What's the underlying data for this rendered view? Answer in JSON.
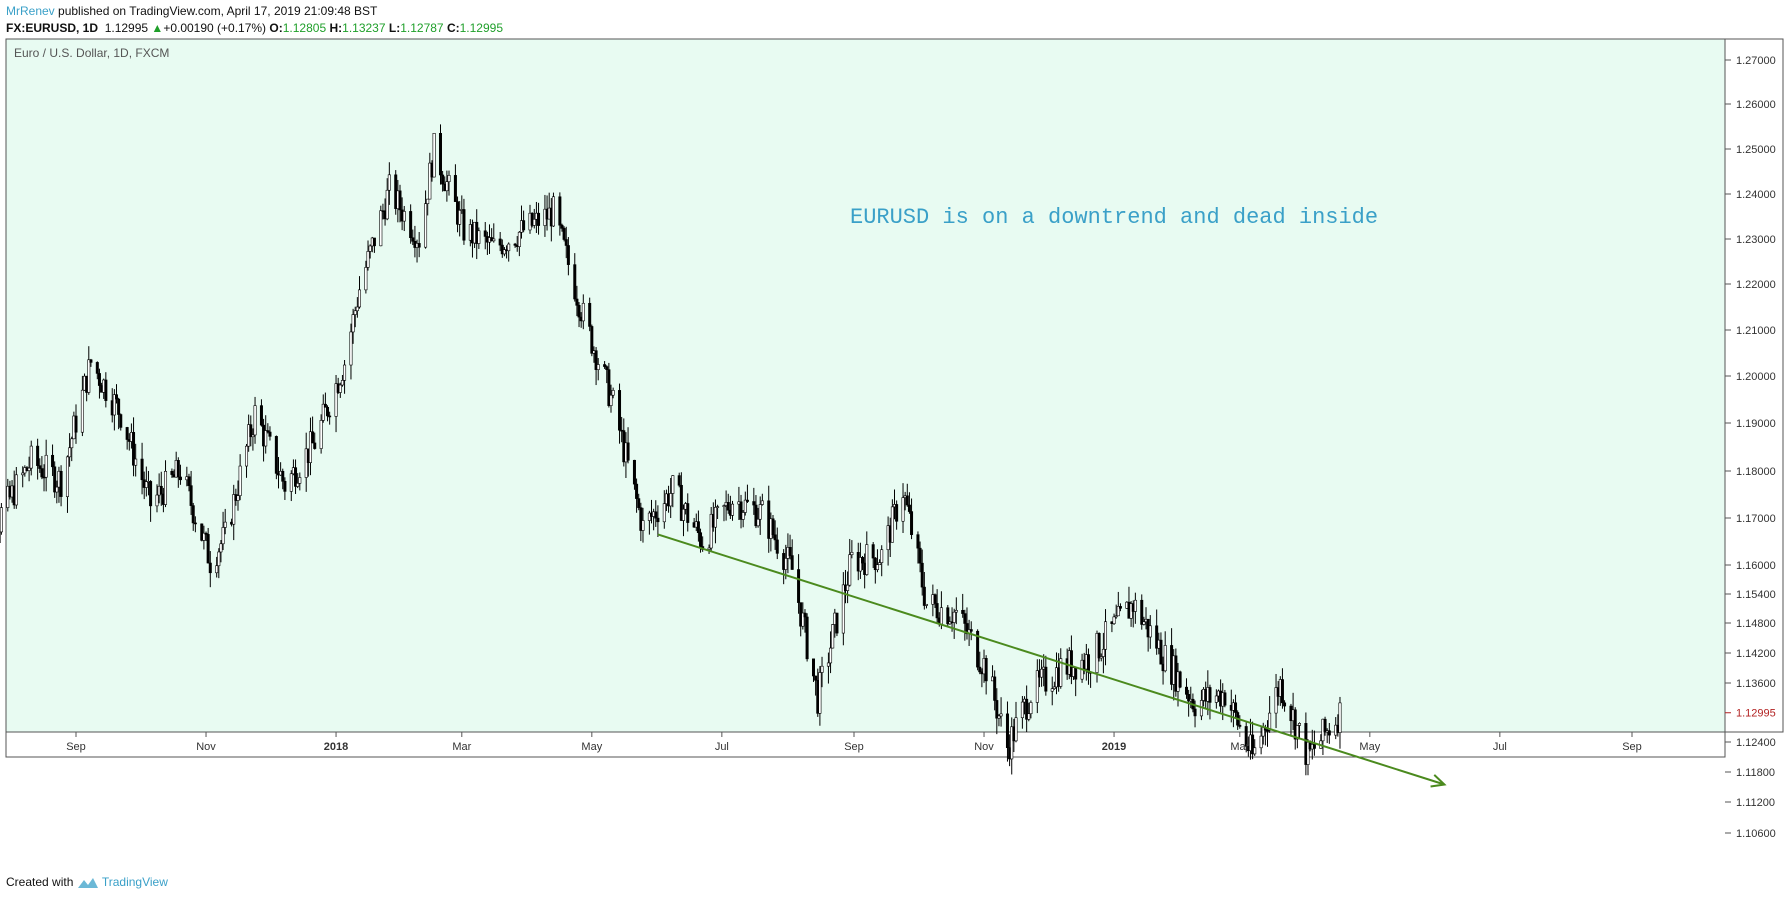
{
  "header": {
    "author": "MrRenev",
    "published_text": "published on TradingView.com, April 17, 2019 21:09:48 BST",
    "symbol": "FX:EURUSD, 1D",
    "last": "1.12995",
    "change": "+0.00190 (+0.17%)",
    "o_label": "O:",
    "o_value": "1.12805",
    "h_label": "H:",
    "h_value": "1.13237",
    "l_label": "L:",
    "l_value": "1.12787",
    "c_label": "C:",
    "c_value": "1.12995"
  },
  "footer": {
    "created_with": "Created with",
    "brand": "TradingView"
  },
  "colors": {
    "pane_bg": "#e8fbf2",
    "candle": "#000000",
    "trendline": "#4b8a1e",
    "annotation": "#3aa0c8",
    "price_label_text": "#b22222"
  },
  "chart_data": {
    "type": "candlestick",
    "title": "Euro / U.S. Dollar, 1D, FXCM",
    "annotation": "EURUSD is on a downtrend and dead inside",
    "x_ticks": [
      {
        "label": "Sep",
        "date": "2017-09-01",
        "bold": false
      },
      {
        "label": "Nov",
        "date": "2017-11-01",
        "bold": false
      },
      {
        "label": "2018",
        "date": "2018-01-01",
        "bold": true
      },
      {
        "label": "Mar",
        "date": "2018-03-01",
        "bold": false
      },
      {
        "label": "May",
        "date": "2018-05-01",
        "bold": false
      },
      {
        "label": "Jul",
        "date": "2018-07-01",
        "bold": false
      },
      {
        "label": "Sep",
        "date": "2018-09-01",
        "bold": false
      },
      {
        "label": "Nov",
        "date": "2018-11-01",
        "bold": false
      },
      {
        "label": "2019",
        "date": "2019-01-01",
        "bold": true
      },
      {
        "label": "Mar",
        "date": "2019-03-01",
        "bold": false
      },
      {
        "label": "May",
        "date": "2019-05-01",
        "bold": false
      },
      {
        "label": "Jul",
        "date": "2019-07-01",
        "bold": false
      },
      {
        "label": "Sep",
        "date": "2019-09-01",
        "bold": false
      }
    ],
    "y_ticks": [
      "1.27000",
      "1.26000",
      "1.25000",
      "1.24000",
      "1.23000",
      "1.22000",
      "1.21000",
      "1.20000",
      "1.19000",
      "1.18000",
      "1.17000",
      "1.16000",
      "1.15400",
      "1.14800",
      "1.14200",
      "1.13600",
      "1.12400",
      "1.11800",
      "1.11200",
      "1.10600"
    ],
    "last_price_label": "1.12995",
    "price_path": [
      [
        "2017-07-14",
        1.146
      ],
      [
        "2017-07-28",
        1.171
      ],
      [
        "2017-08-11",
        1.182
      ],
      [
        "2017-08-25",
        1.178
      ],
      [
        "2017-09-08",
        1.203
      ],
      [
        "2017-09-22",
        1.192
      ],
      [
        "2017-10-06",
        1.173
      ],
      [
        "2017-10-20",
        1.18
      ],
      [
        "2017-11-03",
        1.161
      ],
      [
        "2017-11-10",
        1.166
      ],
      [
        "2017-11-24",
        1.192
      ],
      [
        "2017-12-08",
        1.177
      ],
      [
        "2017-12-22",
        1.186
      ],
      [
        "2018-01-05",
        1.203
      ],
      [
        "2018-01-12",
        1.219
      ],
      [
        "2018-01-26",
        1.241
      ],
      [
        "2018-02-09",
        1.23
      ],
      [
        "2018-02-16",
        1.25
      ],
      [
        "2018-03-02",
        1.232
      ],
      [
        "2018-03-16",
        1.228
      ],
      [
        "2018-03-30",
        1.232
      ],
      [
        "2018-04-13",
        1.236
      ],
      [
        "2018-04-27",
        1.213
      ],
      [
        "2018-05-11",
        1.194
      ],
      [
        "2018-05-25",
        1.168
      ],
      [
        "2018-06-08",
        1.176
      ],
      [
        "2018-06-22",
        1.165
      ],
      [
        "2018-07-06",
        1.174
      ],
      [
        "2018-07-20",
        1.171
      ],
      [
        "2018-08-03",
        1.159
      ],
      [
        "2018-08-15",
        1.133
      ],
      [
        "2018-08-31",
        1.161
      ],
      [
        "2018-09-14",
        1.162
      ],
      [
        "2018-09-24",
        1.176
      ],
      [
        "2018-10-05",
        1.152
      ],
      [
        "2018-10-19",
        1.15
      ],
      [
        "2018-11-02",
        1.139
      ],
      [
        "2018-11-12",
        1.123
      ],
      [
        "2018-11-23",
        1.134
      ],
      [
        "2018-12-07",
        1.139
      ],
      [
        "2018-12-21",
        1.141
      ],
      [
        "2019-01-10",
        1.152
      ],
      [
        "2019-01-25",
        1.141
      ],
      [
        "2019-02-08",
        1.132
      ],
      [
        "2019-02-22",
        1.134
      ],
      [
        "2019-03-07",
        1.121
      ],
      [
        "2019-03-20",
        1.136
      ],
      [
        "2019-04-02",
        1.121
      ],
      [
        "2019-04-17",
        1.12995
      ]
    ],
    "trendline": {
      "start": [
        "2018-06-01",
        1.1665
      ],
      "end": [
        "2019-06-05",
        1.1155
      ]
    }
  }
}
